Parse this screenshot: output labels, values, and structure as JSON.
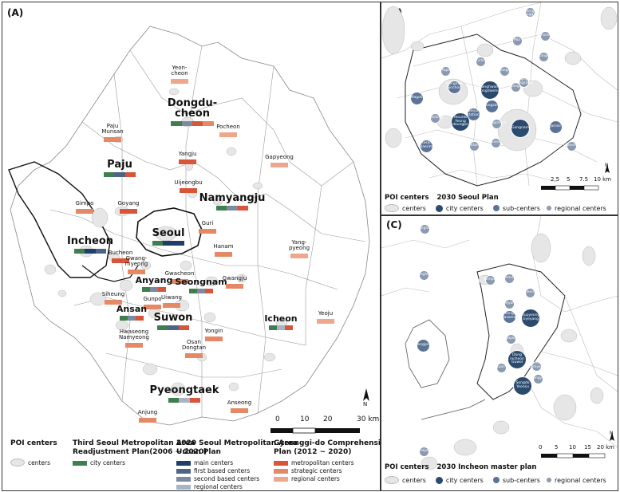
{
  "panels": {
    "a_label": "(A)",
    "b_label": "(B)",
    "c_label": "(C)"
  },
  "colors": {
    "city_centers": "#3f7f4f",
    "main_centers": "#1f3f6a",
    "first_based": "#4d6585",
    "second_based": "#7a8aa3",
    "regional_seoul": "#a9b3c6",
    "metropolitan": "#d9553a",
    "strategic": "#e58866",
    "regional_gg": "#eea78a",
    "poi": "#e6e6e6"
  },
  "panel_a": {
    "cities": [
      {
        "id": "yeoncheon",
        "text": "Yeon-\ncheon",
        "size": "s",
        "bars": [
          "regional_gg"
        ]
      },
      {
        "id": "dongducheon",
        "text": "Dongdu-\ncheon",
        "size": "l",
        "bars": [
          "city_centers",
          "second_based",
          "metropolitan",
          "strategic"
        ]
      },
      {
        "id": "pocheon",
        "text": "Pocheon",
        "size": "s",
        "bars": [
          "regional_gg"
        ]
      },
      {
        "id": "paju-munsan",
        "text": "Paju\nMunsan",
        "size": "s",
        "bars": [
          "strategic"
        ]
      },
      {
        "id": "yangju",
        "text": "Yangju",
        "size": "s",
        "bars": [
          "metropolitan"
        ]
      },
      {
        "id": "gapyeong",
        "text": "Gapyeong",
        "size": "s",
        "bars": [
          "regional_gg"
        ]
      },
      {
        "id": "paju",
        "text": "Paju",
        "size": "l",
        "bars": [
          "city_centers",
          "first_based",
          "metropolitan"
        ]
      },
      {
        "id": "uijeongbu",
        "text": "Uijeongbu",
        "size": "s",
        "bars": [
          "metropolitan"
        ]
      },
      {
        "id": "namyangju",
        "text": "Namyangju",
        "size": "l",
        "bars": [
          "city_centers",
          "second_based",
          "metropolitan"
        ]
      },
      {
        "id": "gimpo",
        "text": "Gimpo",
        "size": "s",
        "bars": [
          "strategic"
        ]
      },
      {
        "id": "goyang",
        "text": "Goyang",
        "size": "s",
        "bars": [
          "metropolitan"
        ]
      },
      {
        "id": "guri",
        "text": "Guri",
        "size": "s",
        "bars": [
          "strategic"
        ]
      },
      {
        "id": "seoul",
        "text": "Seoul",
        "size": "l",
        "bars": [
          "city_centers",
          "main_centers",
          "main_centers"
        ]
      },
      {
        "id": "incheon",
        "text": "Incheon",
        "size": "l",
        "bars": [
          "city_centers",
          "main_centers",
          "first_based"
        ]
      },
      {
        "id": "hanam",
        "text": "Hanam",
        "size": "s",
        "bars": [
          "strategic"
        ]
      },
      {
        "id": "yangpyeong",
        "text": "Yang-\npyeong",
        "size": "s",
        "bars": [
          "regional_gg"
        ]
      },
      {
        "id": "bucheon",
        "text": "Bucheon",
        "size": "s",
        "bars": [
          "metropolitan"
        ]
      },
      {
        "id": "gwangmyeong",
        "text": "Gwang-\nmyeong",
        "size": "s",
        "bars": [
          "strategic"
        ]
      },
      {
        "id": "gwacheon",
        "text": "Gwacheon",
        "size": "s",
        "bars": [
          "strategic"
        ]
      },
      {
        "id": "anyang",
        "text": "Anyang",
        "size": "m",
        "bars": [
          "city_centers",
          "second_based",
          "metropolitan"
        ]
      },
      {
        "id": "seongnam",
        "text": "Seongnam",
        "size": "m",
        "bars": [
          "city_centers",
          "second_based",
          "metropolitan"
        ]
      },
      {
        "id": "gwangju",
        "text": "Gwangju",
        "size": "s",
        "bars": [
          "strategic"
        ]
      },
      {
        "id": "siheung",
        "text": "Siheung",
        "size": "s",
        "bars": [
          "strategic"
        ]
      },
      {
        "id": "gunpo",
        "text": "Gunpo",
        "size": "s",
        "bars": [
          "strategic"
        ]
      },
      {
        "id": "uiwang",
        "text": "Uiwang",
        "size": "s",
        "bars": [
          "strategic"
        ]
      },
      {
        "id": "ansan",
        "text": "Ansan",
        "size": "m",
        "bars": [
          "city_centers",
          "second_based",
          "metropolitan"
        ]
      },
      {
        "id": "suwon",
        "text": "Suwon",
        "size": "l",
        "bars": [
          "city_centers",
          "first_based",
          "metropolitan"
        ]
      },
      {
        "id": "icheon",
        "text": "Icheon",
        "size": "m",
        "bars": [
          "city_centers",
          "regional_seoul",
          "metropolitan"
        ]
      },
      {
        "id": "yeoju",
        "text": "Yeoju",
        "size": "s",
        "bars": [
          "regional_gg"
        ]
      },
      {
        "id": "yongin",
        "text": "Yongin",
        "size": "s",
        "bars": [
          "strategic"
        ]
      },
      {
        "id": "hwaseong",
        "text": "Hwaseong\nNamyeong",
        "size": "s",
        "bars": [
          "strategic"
        ]
      },
      {
        "id": "osan",
        "text": "Osan\nDongtan",
        "size": "s",
        "bars": [
          "strategic"
        ]
      },
      {
        "id": "pyeongtaek",
        "text": "Pyeongtaek",
        "size": "l",
        "bars": [
          "city_centers",
          "regional_seoul",
          "metropolitan"
        ]
      },
      {
        "id": "anjung",
        "text": "Anjung",
        "size": "s",
        "bars": [
          "strategic"
        ]
      },
      {
        "id": "anseong",
        "text": "Anseong",
        "size": "s",
        "bars": [
          "strategic"
        ]
      }
    ],
    "scale": [
      "0",
      "10",
      "20",
      "30 km"
    ],
    "north": "N",
    "legend": {
      "poi_title": "POI centers",
      "poi_item": "centers",
      "third_title": "Third Seoul Metropolitan Area\nReadjustment Plan(2006 ~ 2020)",
      "third_items": [
        "city centers"
      ],
      "seoul_title": "2020 Seoul Metropolitan Area\nUrban Plan",
      "seoul_items": [
        "main centers",
        "first based centers",
        "second based centers",
        "regional centers"
      ],
      "gg_title": "Gyeonggi-do Comprehensive\nPlan (2012 ~ 2020)",
      "gg_items": [
        "metropolitan centers",
        "strategic centers",
        "regional centers"
      ]
    }
  },
  "panel_b": {
    "bubbles": [
      {
        "t": "Chang\ndong\nSanggye",
        "k": "reg"
      },
      {
        "t": "Mia",
        "k": "reg"
      },
      {
        "t": "Yeonsinnae",
        "k": "reg"
      },
      {
        "t": "Mangu",
        "k": "reg"
      },
      {
        "t": "Sinchon",
        "k": "reg"
      },
      {
        "t": "Seongsu",
        "k": "reg"
      },
      {
        "t": "Mapo",
        "k": "reg"
      },
      {
        "t": "Mangu",
        "k": "reg"
      },
      {
        "t": "Cheongnyangni\nWangsimni",
        "k": "reg"
      },
      {
        "t": "Magok",
        "k": "sub"
      },
      {
        "t": "Hongdae\nSinchon",
        "k": "sub"
      },
      {
        "t": "Seoul\nstation",
        "k": "sub"
      },
      {
        "t": "Gwanghwamun\nDongdaemun",
        "k": "city"
      },
      {
        "t": "Yongsan",
        "k": "sub"
      },
      {
        "t": "Yeouido\nYeong\ndeungpo",
        "k": "city"
      },
      {
        "t": "Gangnam",
        "k": "city"
      },
      {
        "t": "Jamsil",
        "k": "sub"
      },
      {
        "t": "Gasan\nDaerim",
        "k": "sub"
      },
      {
        "t": "Sadang",
        "k": "reg"
      },
      {
        "t": "Suseo",
        "k": "reg"
      },
      {
        "t": "Mokdong",
        "k": "reg"
      },
      {
        "t": "Bongcheon",
        "k": "reg"
      },
      {
        "t": "Cheonho",
        "k": "reg"
      }
    ],
    "scale": [
      "2.5",
      "5",
      "7.5",
      "10 km"
    ],
    "north": "N",
    "legend": {
      "poi_title": "POI centers",
      "plan_title": "2030 Seoul Plan",
      "poi_item": "centers",
      "items": [
        "city centers",
        "sub-centers",
        "regional centers"
      ]
    }
  },
  "panel_c": {
    "bubbles": [
      {
        "t": "Ganghwa",
        "k": "reg"
      },
      {
        "t": "Ganghwa",
        "k": "reg"
      },
      {
        "t": "Gimpo",
        "k": "reg"
      },
      {
        "t": "Geomdan",
        "k": "reg"
      },
      {
        "t": "Ojeong",
        "k": "reg"
      },
      {
        "t": "Gyeyang",
        "k": "reg"
      },
      {
        "t": "Cheongna\nGaseong",
        "k": "sub"
      },
      {
        "t": "Bupyeong\nGyeyang",
        "k": "city"
      },
      {
        "t": "Gajwa",
        "k": "reg"
      },
      {
        "t": "Yeongjong",
        "k": "sub"
      },
      {
        "t": "Dong\nincheon\nGuwol",
        "k": "city"
      },
      {
        "t": "Juan",
        "k": "reg"
      },
      {
        "t": "Seochang\nNonhyeon",
        "k": "reg"
      },
      {
        "t": "Songdo\nYeonsu",
        "k": "city"
      },
      {
        "t": "Yongyu",
        "k": "reg"
      },
      {
        "t": "Deokjeok",
        "k": "reg"
      }
    ],
    "scale": [
      "0",
      "5",
      "10",
      "15",
      "20 km"
    ],
    "north": "N",
    "legend": {
      "poi_title": "POI centers",
      "plan_title": "2030 Incheon master plan",
      "poi_item": "centers",
      "items": [
        "city centers",
        "sub-centers",
        "regional centers"
      ]
    }
  }
}
